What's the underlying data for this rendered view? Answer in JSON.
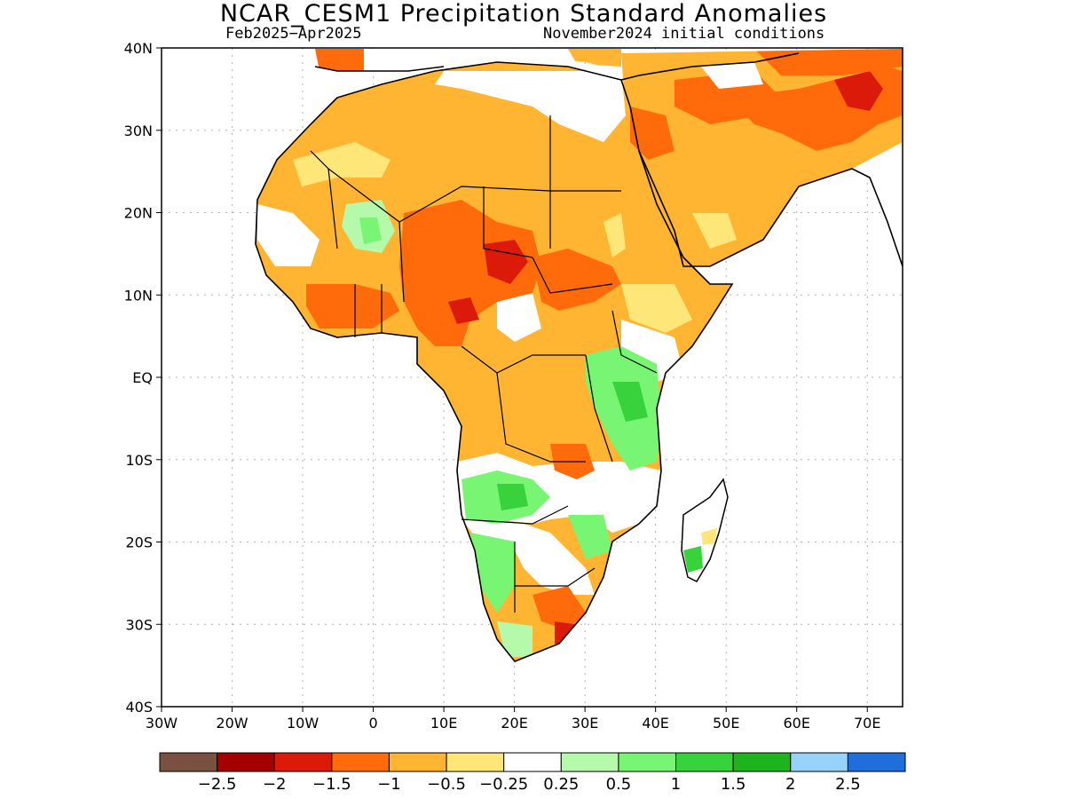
{
  "title": "NCAR_CESM1 Precipitation Standard Anomalies",
  "subtitle_left": "Feb2025−Apr2025",
  "subtitle_right": "November2024 initial conditions",
  "map": {
    "lon_range": [
      -30,
      75
    ],
    "lat_range": [
      -40,
      40
    ],
    "lat_ticks": [
      {
        "value": 40,
        "label": "40N"
      },
      {
        "value": 30,
        "label": "30N"
      },
      {
        "value": 20,
        "label": "20N"
      },
      {
        "value": 10,
        "label": "10N"
      },
      {
        "value": 0,
        "label": "EQ"
      },
      {
        "value": -10,
        "label": "10S"
      },
      {
        "value": -20,
        "label": "20S"
      },
      {
        "value": -30,
        "label": "30S"
      },
      {
        "value": -40,
        "label": "40S"
      }
    ],
    "lon_ticks": [
      {
        "value": -30,
        "label": "30W"
      },
      {
        "value": -20,
        "label": "20W"
      },
      {
        "value": -10,
        "label": "10W"
      },
      {
        "value": 0,
        "label": "0"
      },
      {
        "value": 10,
        "label": "10E"
      },
      {
        "value": 20,
        "label": "20E"
      },
      {
        "value": 30,
        "label": "30E"
      },
      {
        "value": 40,
        "label": "40E"
      },
      {
        "value": 50,
        "label": "50E"
      },
      {
        "value": 60,
        "label": "60E"
      },
      {
        "value": 70,
        "label": "70E"
      }
    ],
    "grid": "dotted"
  },
  "colorbar": {
    "colors": [
      "#7a5040",
      "#a50000",
      "#dc1a0a",
      "#ff6a0a",
      "#ffb432",
      "#ffe678",
      "#ffffff",
      "#b4faaa",
      "#78f573",
      "#37d23c",
      "#1eb41e",
      "#96d2fa",
      "#1e6edc"
    ],
    "labels": [
      "−2.5",
      "−2",
      "−1.5",
      "−1",
      "−0.5",
      "−0.25",
      "0.25",
      "0.5",
      "1",
      "1.5",
      "2",
      "2.5"
    ]
  },
  "colors": {
    "land_base": "#ffb432",
    "coast": "#000000",
    "border": "#000000"
  }
}
